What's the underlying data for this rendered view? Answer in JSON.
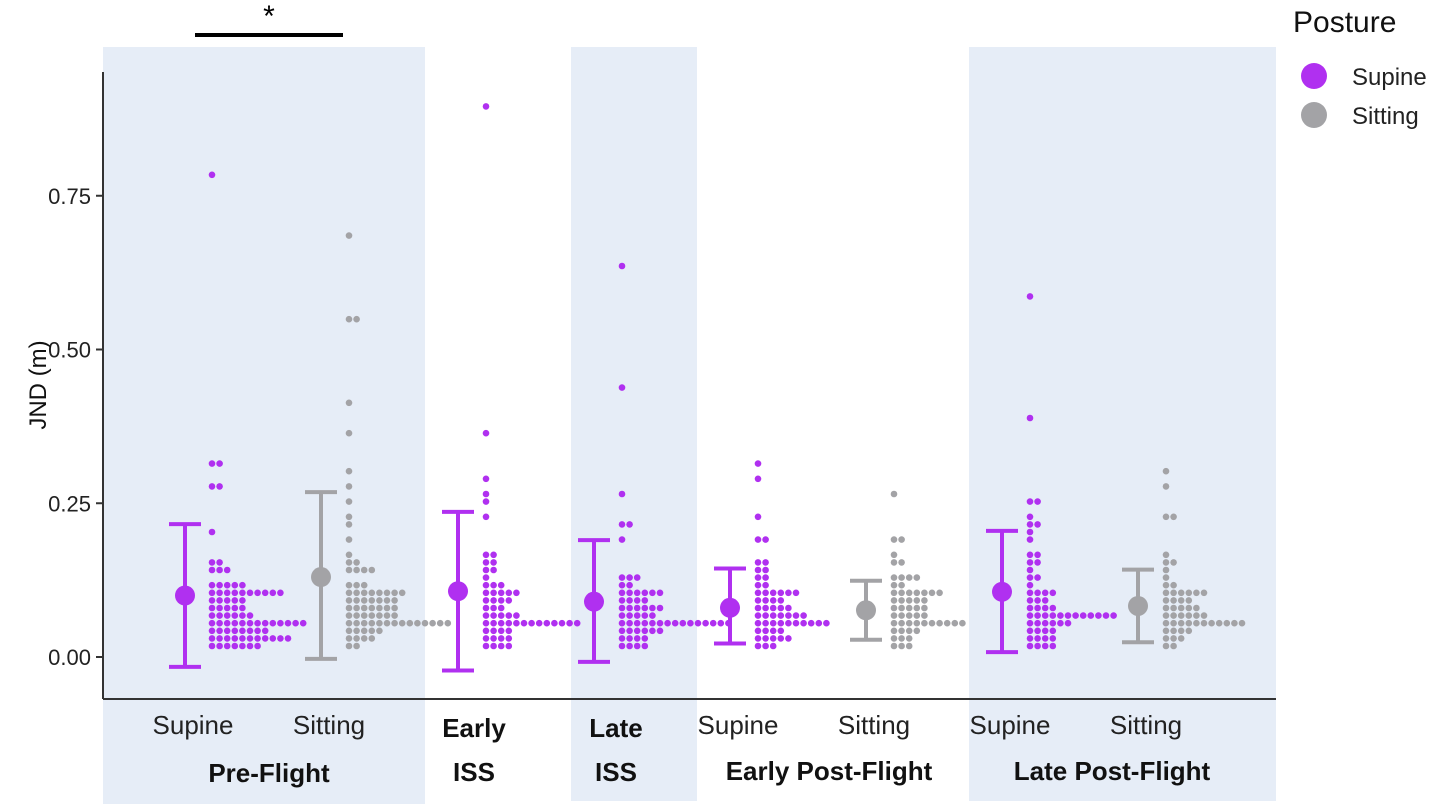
{
  "chart_data": {
    "type": "dot-strip",
    "ylabel": "JND (m)",
    "ylim": [
      -0.07,
      0.95
    ],
    "y_ticks": [
      "0.00",
      "0.25",
      "0.50",
      "0.75"
    ],
    "y_tick_values": [
      0,
      0.25,
      0.5,
      0.75
    ],
    "legend": {
      "title": "Posture",
      "placement": "right",
      "entries": [
        {
          "label": "Supine",
          "color": "#b030f0"
        },
        {
          "label": "Sitting",
          "color": "#a3a3a6"
        }
      ]
    },
    "phases": [
      {
        "label": "Pre-Flight",
        "shaded": true
      },
      {
        "label": "Early\nISS",
        "shaded": false
      },
      {
        "label": "Late\nISS",
        "shaded": true
      },
      {
        "label": "Early Post-Flight",
        "shaded": false
      },
      {
        "label": "Late Post-Flight",
        "shaded": true
      }
    ],
    "significance": {
      "between": [
        "Pre-Flight Supine",
        "Pre-Flight Sitting"
      ],
      "label": "*"
    },
    "groups": [
      {
        "phase": "Pre-Flight",
        "posture": "Supine",
        "category": "Supine",
        "mean": 0.1,
        "ci": [
          -0.016,
          0.216
        ],
        "values": [
          0.79,
          0.32,
          0.32,
          0.28,
          0.28,
          0.2,
          0.16,
          0.16,
          0.14,
          0.14,
          0.14,
          0.12,
          0.12,
          0.12,
          0.12,
          0.12,
          0.11,
          0.11,
          0.11,
          0.11,
          0.11,
          0.1,
          0.1,
          0.1,
          0.1,
          0.1,
          0.09,
          0.09,
          0.09,
          0.09,
          0.09,
          0.08,
          0.08,
          0.08,
          0.08,
          0.08,
          0.07,
          0.07,
          0.07,
          0.07,
          0.07,
          0.07,
          0.06,
          0.06,
          0.06,
          0.06,
          0.06,
          0.06,
          0.05,
          0.05,
          0.05,
          0.05,
          0.05,
          0.05,
          0.05,
          0.04,
          0.04,
          0.04,
          0.04,
          0.04,
          0.04,
          0.04,
          0.04,
          0.03,
          0.03,
          0.03,
          0.03,
          0.03,
          0.03,
          0.03,
          0.03,
          0.03,
          0.03,
          0.03,
          0.02,
          0.02,
          0.02,
          0.02,
          0.02,
          0.02,
          0.02
        ]
      },
      {
        "phase": "Pre-Flight",
        "posture": "Sitting",
        "category": "Sitting",
        "mean": 0.13,
        "ci": [
          -0.003,
          0.268
        ],
        "values": [
          0.68,
          0.55,
          0.55,
          0.41,
          0.36,
          0.3,
          0.28,
          0.25,
          0.23,
          0.21,
          0.19,
          0.17,
          0.16,
          0.16,
          0.14,
          0.14,
          0.14,
          0.14,
          0.12,
          0.12,
          0.12,
          0.11,
          0.11,
          0.11,
          0.11,
          0.1,
          0.1,
          0.1,
          0.1,
          0.09,
          0.09,
          0.09,
          0.09,
          0.09,
          0.09,
          0.09,
          0.08,
          0.08,
          0.08,
          0.08,
          0.08,
          0.08,
          0.08,
          0.07,
          0.07,
          0.07,
          0.07,
          0.07,
          0.07,
          0.07,
          0.06,
          0.06,
          0.06,
          0.06,
          0.06,
          0.06,
          0.06,
          0.06,
          0.06,
          0.05,
          0.05,
          0.05,
          0.05,
          0.05,
          0.04,
          0.04,
          0.04,
          0.04,
          0.04,
          0.03,
          0.03,
          0.03,
          0.03,
          0.02,
          0.02
        ]
      },
      {
        "phase": "Early ISS",
        "posture": "Supine",
        "category": "",
        "mean": 0.107,
        "ci": [
          -0.022,
          0.236
        ],
        "values": [
          0.9,
          0.37,
          0.29,
          0.27,
          0.25,
          0.23,
          0.17,
          0.17,
          0.15,
          0.15,
          0.14,
          0.14,
          0.13,
          0.12,
          0.12,
          0.12,
          0.11,
          0.11,
          0.1,
          0.1,
          0.1,
          0.09,
          0.09,
          0.09,
          0.09,
          0.08,
          0.08,
          0.08,
          0.07,
          0.07,
          0.07,
          0.07,
          0.07,
          0.06,
          0.06,
          0.06,
          0.06,
          0.06,
          0.05,
          0.05,
          0.05,
          0.05,
          0.05,
          0.05,
          0.05,
          0.05,
          0.04,
          0.04,
          0.04,
          0.04,
          0.03,
          0.03,
          0.03,
          0.03,
          0.02,
          0.02,
          0.02,
          0.02
        ]
      },
      {
        "phase": "Late ISS",
        "posture": "Supine",
        "category": "",
        "mean": 0.09,
        "ci": [
          -0.008,
          0.19
        ],
        "values": [
          0.63,
          0.44,
          0.26,
          0.22,
          0.21,
          0.19,
          0.13,
          0.13,
          0.13,
          0.12,
          0.12,
          0.11,
          0.11,
          0.11,
          0.1,
          0.1,
          0.1,
          0.09,
          0.09,
          0.09,
          0.09,
          0.08,
          0.08,
          0.08,
          0.08,
          0.08,
          0.08,
          0.07,
          0.07,
          0.07,
          0.07,
          0.07,
          0.06,
          0.06,
          0.06,
          0.06,
          0.06,
          0.06,
          0.06,
          0.05,
          0.05,
          0.05,
          0.05,
          0.05,
          0.05,
          0.05,
          0.05,
          0.04,
          0.04,
          0.04,
          0.04,
          0.04,
          0.04,
          0.03,
          0.03,
          0.03,
          0.03,
          0.02,
          0.02,
          0.02,
          0.02
        ]
      },
      {
        "phase": "Early Post-Flight",
        "posture": "Supine",
        "category": "Supine",
        "mean": 0.08,
        "ci": [
          0.022,
          0.144
        ],
        "values": [
          0.31,
          0.29,
          0.23,
          0.19,
          0.19,
          0.16,
          0.16,
          0.14,
          0.14,
          0.13,
          0.13,
          0.12,
          0.12,
          0.11,
          0.11,
          0.1,
          0.1,
          0.1,
          0.1,
          0.09,
          0.09,
          0.09,
          0.09,
          0.08,
          0.08,
          0.08,
          0.08,
          0.08,
          0.07,
          0.07,
          0.07,
          0.07,
          0.07,
          0.07,
          0.07,
          0.06,
          0.06,
          0.06,
          0.06,
          0.06,
          0.05,
          0.05,
          0.05,
          0.05,
          0.05,
          0.04,
          0.04,
          0.04,
          0.04,
          0.03,
          0.03,
          0.03,
          0.03,
          0.03,
          0.02,
          0.02,
          0.02
        ]
      },
      {
        "phase": "Early Post-Flight",
        "posture": "Sitting",
        "category": "Sitting",
        "mean": 0.076,
        "ci": [
          0.028,
          0.124
        ],
        "values": [
          0.27,
          0.19,
          0.19,
          0.17,
          0.16,
          0.16,
          0.13,
          0.13,
          0.13,
          0.13,
          0.12,
          0.12,
          0.11,
          0.11,
          0.11,
          0.1,
          0.1,
          0.1,
          0.1,
          0.09,
          0.09,
          0.09,
          0.09,
          0.09,
          0.08,
          0.08,
          0.08,
          0.08,
          0.08,
          0.07,
          0.07,
          0.07,
          0.07,
          0.07,
          0.06,
          0.06,
          0.06,
          0.06,
          0.06,
          0.05,
          0.05,
          0.05,
          0.05,
          0.05,
          0.04,
          0.04,
          0.04,
          0.04,
          0.03,
          0.03,
          0.03,
          0.02,
          0.02,
          0.02
        ]
      },
      {
        "phase": "Late Post-Flight",
        "posture": "Supine",
        "category": "Supine",
        "mean": 0.106,
        "ci": [
          0.008,
          0.205
        ],
        "values": [
          0.59,
          0.39,
          0.25,
          0.25,
          0.23,
          0.22,
          0.22,
          0.2,
          0.19,
          0.17,
          0.17,
          0.16,
          0.15,
          0.14,
          0.13,
          0.13,
          0.12,
          0.11,
          0.11,
          0.1,
          0.1,
          0.09,
          0.09,
          0.09,
          0.08,
          0.08,
          0.08,
          0.08,
          0.07,
          0.07,
          0.07,
          0.07,
          0.07,
          0.07,
          0.07,
          0.07,
          0.07,
          0.07,
          0.07,
          0.07,
          0.06,
          0.06,
          0.06,
          0.05,
          0.05,
          0.05,
          0.04,
          0.04,
          0.04,
          0.04,
          0.03,
          0.03,
          0.03,
          0.03,
          0.02,
          0.02,
          0.02,
          0.02
        ]
      },
      {
        "phase": "Late Post-Flight",
        "posture": "Sitting",
        "category": "Sitting",
        "mean": 0.083,
        "ci": [
          0.024,
          0.142
        ],
        "values": [
          0.3,
          0.28,
          0.23,
          0.23,
          0.17,
          0.16,
          0.16,
          0.14,
          0.13,
          0.12,
          0.12,
          0.11,
          0.11,
          0.1,
          0.1,
          0.1,
          0.1,
          0.09,
          0.09,
          0.09,
          0.09,
          0.08,
          0.08,
          0.08,
          0.08,
          0.08,
          0.07,
          0.07,
          0.07,
          0.07,
          0.07,
          0.07,
          0.06,
          0.06,
          0.06,
          0.06,
          0.06,
          0.06,
          0.06,
          0.05,
          0.05,
          0.05,
          0.05,
          0.04,
          0.04,
          0.04,
          0.04,
          0.03,
          0.03,
          0.03,
          0.02,
          0.02
        ]
      }
    ]
  }
}
